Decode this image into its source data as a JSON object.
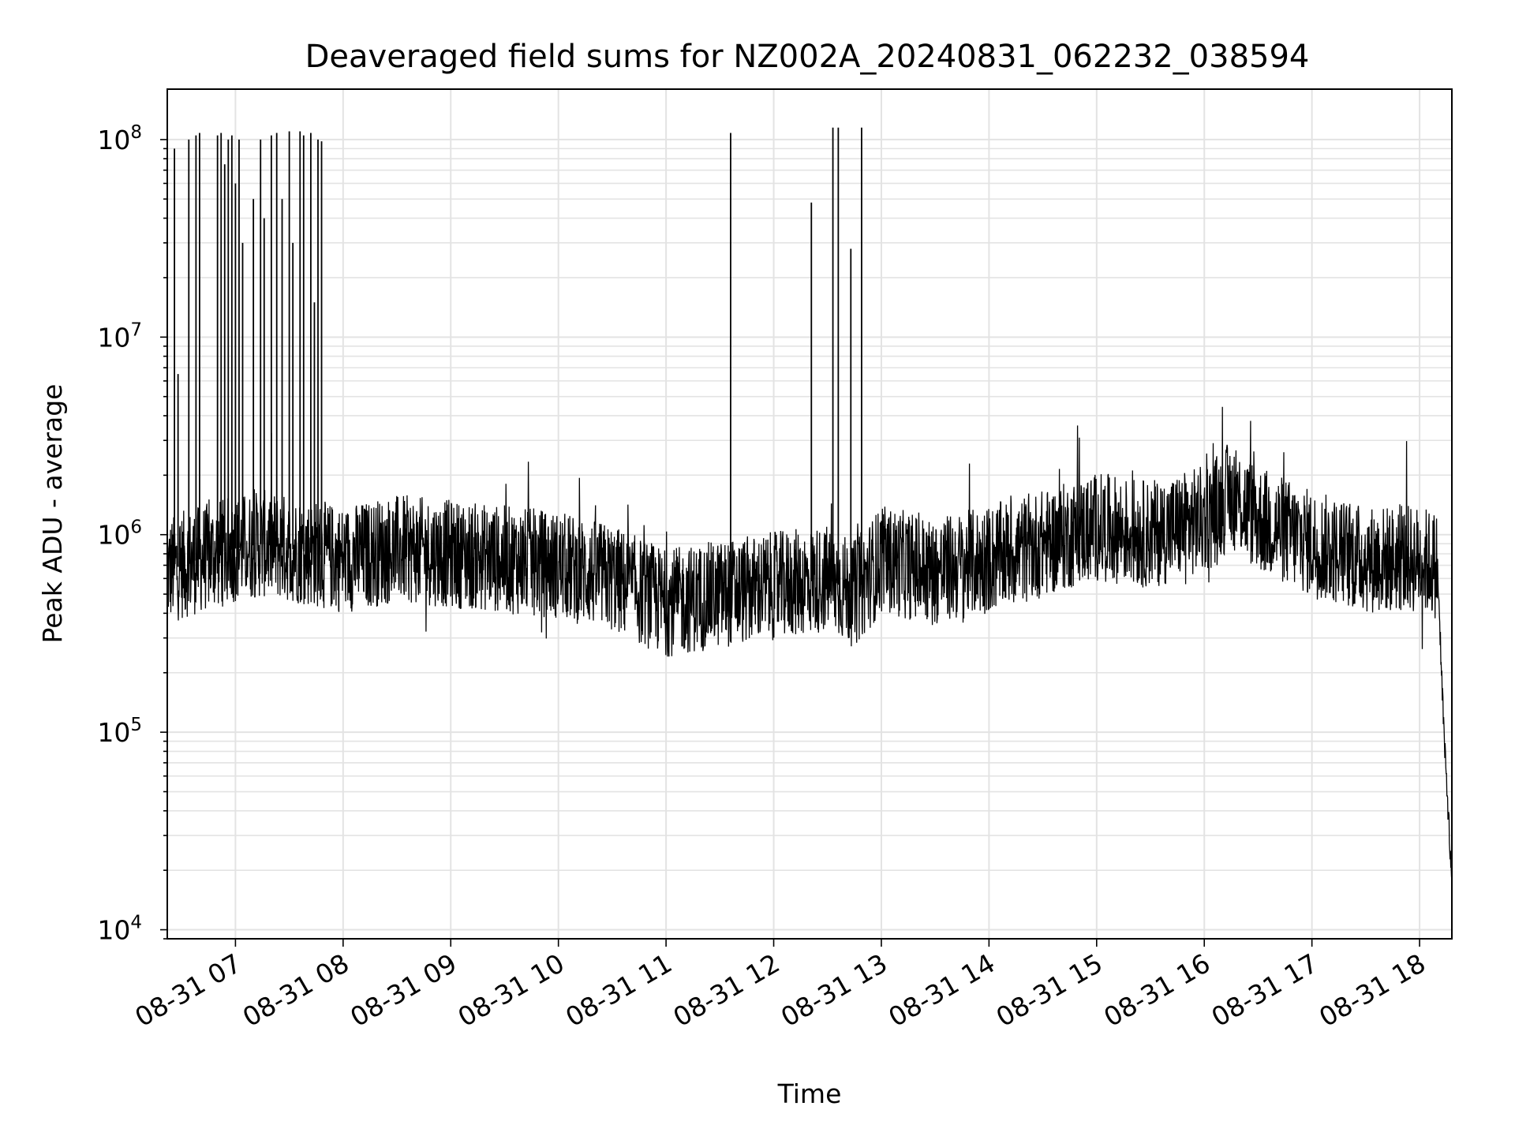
{
  "chart_data": {
    "type": "line",
    "title": "Deaveraged field sums for NZ002A_20240831_062232_038594",
    "xlabel": "Time",
    "ylabel": "Peak ADU - average",
    "yscale": "log",
    "ylim": [
      9000,
      180000000
    ],
    "xlim": [
      "2024-08-31 06:22",
      "2024-08-31 18:18"
    ],
    "grid": true,
    "line_color": "#000000",
    "x_ticks": [
      "08-31 07",
      "08-31 08",
      "08-31 09",
      "08-31 10",
      "08-31 11",
      "08-31 12",
      "08-31 13",
      "08-31 14",
      "08-31 15",
      "08-31 16",
      "08-31 17",
      "08-31 18"
    ],
    "y_ticks": [
      {
        "base": "10",
        "exp": "4"
      },
      {
        "base": "10",
        "exp": "5"
      },
      {
        "base": "10",
        "exp": "6"
      },
      {
        "base": "10",
        "exp": "7"
      },
      {
        "base": "10",
        "exp": "8"
      }
    ],
    "series": [
      {
        "x": [
          "2024-08-31 06:22",
          "2024-08-31 06:30",
          "2024-08-31 06:40",
          "2024-08-31 06:50",
          "2024-08-31 07:00",
          "2024-08-31 07:15",
          "2024-08-31 07:30",
          "2024-08-31 07:45",
          "2024-08-31 08:00",
          "2024-08-31 08:30",
          "2024-08-31 09:00",
          "2024-08-31 09:30",
          "2024-08-31 10:00",
          "2024-08-31 10:30",
          "2024-08-31 11:00",
          "2024-08-31 11:30",
          "2024-08-31 12:00",
          "2024-08-31 12:30",
          "2024-08-31 12:45",
          "2024-08-31 13:00",
          "2024-08-31 13:30",
          "2024-08-31 14:00",
          "2024-08-31 14:30",
          "2024-08-31 15:00",
          "2024-08-31 15:30",
          "2024-08-31 16:00",
          "2024-08-31 16:15",
          "2024-08-31 16:30",
          "2024-08-31 17:00",
          "2024-08-31 17:30",
          "2024-08-31 18:00",
          "2024-08-31 18:10",
          "2024-08-31 18:14",
          "2024-08-31 18:16",
          "2024-08-31 18:18"
        ],
        "y": [
          650000,
          700000,
          750000,
          800000,
          850000,
          900000,
          850000,
          800000,
          750000,
          850000,
          800000,
          750000,
          700000,
          600000,
          450000,
          500000,
          550000,
          600000,
          500000,
          750000,
          650000,
          750000,
          900000,
          1100000,
          1000000,
          1200000,
          1600000,
          1200000,
          900000,
          750000,
          750000,
          700000,
          80000,
          40000,
          15000
        ]
      }
    ],
    "spikes": [
      {
        "x": "2024-08-31 06:26",
        "y": 90000000
      },
      {
        "x": "2024-08-31 06:28",
        "y": 6500000
      },
      {
        "x": "2024-08-31 06:34",
        "y": 100000000
      },
      {
        "x": "2024-08-31 06:38",
        "y": 105000000
      },
      {
        "x": "2024-08-31 06:40",
        "y": 108000000
      },
      {
        "x": "2024-08-31 06:50",
        "y": 105000000
      },
      {
        "x": "2024-08-31 06:52",
        "y": 108000000
      },
      {
        "x": "2024-08-31 06:54",
        "y": 75000000
      },
      {
        "x": "2024-08-31 06:56",
        "y": 100000000
      },
      {
        "x": "2024-08-31 06:58",
        "y": 105000000
      },
      {
        "x": "2024-08-31 07:00",
        "y": 60000000
      },
      {
        "x": "2024-08-31 07:02",
        "y": 100000000
      },
      {
        "x": "2024-08-31 07:04",
        "y": 30000000
      },
      {
        "x": "2024-08-31 07:10",
        "y": 50000000
      },
      {
        "x": "2024-08-31 07:14",
        "y": 100000000
      },
      {
        "x": "2024-08-31 07:16",
        "y": 40000000
      },
      {
        "x": "2024-08-31 07:20",
        "y": 105000000
      },
      {
        "x": "2024-08-31 07:23",
        "y": 108000000
      },
      {
        "x": "2024-08-31 07:26",
        "y": 50000000
      },
      {
        "x": "2024-08-31 07:30",
        "y": 110000000
      },
      {
        "x": "2024-08-31 07:32",
        "y": 30000000
      },
      {
        "x": "2024-08-31 07:36",
        "y": 110000000
      },
      {
        "x": "2024-08-31 07:38",
        "y": 105000000
      },
      {
        "x": "2024-08-31 07:42",
        "y": 108000000
      },
      {
        "x": "2024-08-31 07:44",
        "y": 15000000
      },
      {
        "x": "2024-08-31 07:46",
        "y": 100000000
      },
      {
        "x": "2024-08-31 07:48",
        "y": 98000000
      },
      {
        "x": "2024-08-31 11:36",
        "y": 108000000
      },
      {
        "x": "2024-08-31 12:21",
        "y": 48000000
      },
      {
        "x": "2024-08-31 12:33",
        "y": 115000000
      },
      {
        "x": "2024-08-31 12:36",
        "y": 115000000
      },
      {
        "x": "2024-08-31 12:43",
        "y": 28000000
      },
      {
        "x": "2024-08-31 12:49",
        "y": 115000000
      }
    ]
  }
}
